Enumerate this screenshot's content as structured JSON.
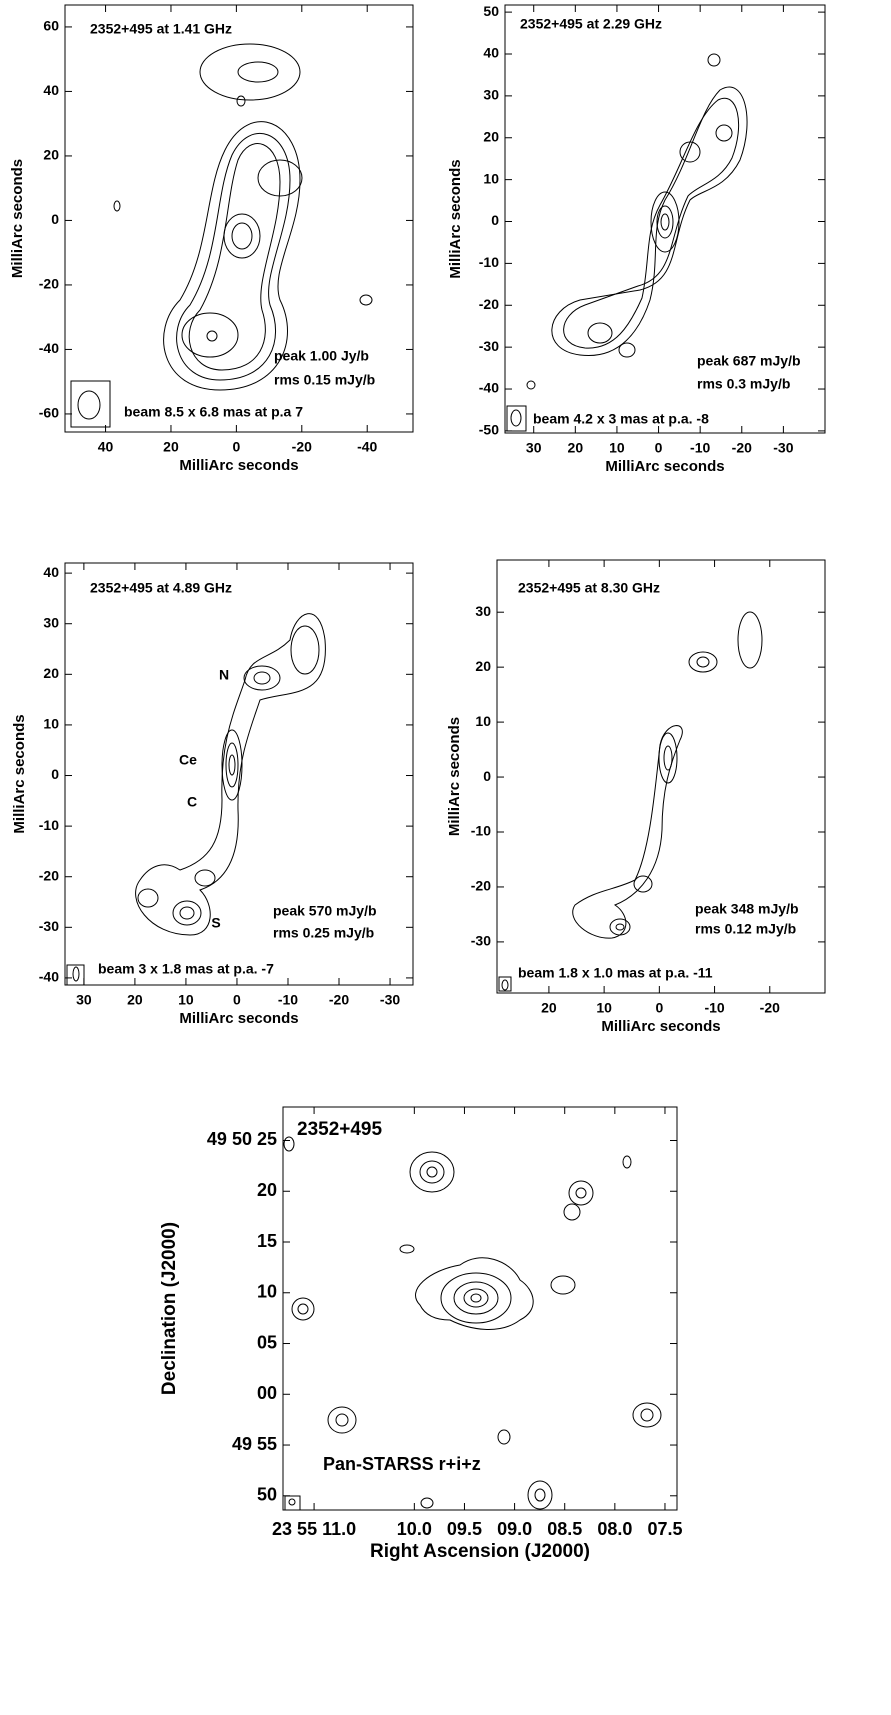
{
  "chart_data": [
    {
      "type": "contour",
      "title": "2352+495  at 1.41 GHz",
      "xlabel": "MilliArc seconds",
      "ylabel": "MilliArc seconds",
      "xlim": [
        52.4,
        -54
      ],
      "ylim": [
        -65.6,
        66.8
      ],
      "xticks": [
        40,
        20,
        0,
        -20,
        -40
      ],
      "yticks": [
        60,
        40,
        20,
        0,
        -20,
        -40,
        -60
      ],
      "annotations": [
        "peak 1.00 Jy/b",
        "rms 0.15 mJy/b",
        "beam 8.5 x 6.8 mas at p.a 7"
      ]
    },
    {
      "type": "contour",
      "title": "2352+495  at 2.29 GHz",
      "xlabel": "MilliArc seconds",
      "ylabel": "MilliArc seconds",
      "xlim": [
        36.9,
        -40
      ],
      "ylim": [
        -50.5,
        51.7
      ],
      "xticks": [
        30,
        20,
        10,
        0,
        -10,
        -20,
        -30
      ],
      "yticks": [
        50,
        40,
        30,
        20,
        10,
        0,
        -10,
        -20,
        -30,
        -40,
        -50
      ],
      "annotations": [
        "peak 687 mJy/b",
        "rms 0.3 mJy/b",
        "beam 4.2 x 3 mas at p.a. -8"
      ]
    },
    {
      "type": "contour",
      "title": "2352+495  at 4.89 GHz",
      "xlabel": "MilliArc seconds",
      "ylabel": "MilliArc seconds",
      "xlim": [
        33.7,
        -34.5
      ],
      "ylim": [
        -41.4,
        42
      ],
      "xticks": [
        30,
        20,
        10,
        0,
        -10,
        -20,
        -30
      ],
      "yticks": [
        40,
        30,
        20,
        10,
        0,
        -10,
        -20,
        -30,
        -40
      ],
      "annotations": [
        "peak 570 mJy/b",
        "rms 0.25 mJy/b",
        "beam 3 x 1.8 mas at p.a. -7"
      ],
      "labels": [
        "N",
        "Ce",
        "C",
        "S"
      ]
    },
    {
      "type": "contour",
      "title": "2352+495  at 8.30 GHz",
      "xlabel": "MilliArc seconds",
      "ylabel": "MilliArc seconds",
      "xlim": [
        29.4,
        -30
      ],
      "ylim": [
        -39.3,
        39.5
      ],
      "xticks": [
        20,
        10,
        0,
        -10,
        -20
      ],
      "yticks": [
        30,
        20,
        10,
        0,
        -10,
        -20,
        -30
      ],
      "annotations": [
        "peak 348 mJy/b",
        "rms 0.12 mJy/b",
        "beam 1.8 x 1.0 mas at p.a. -11"
      ]
    },
    {
      "type": "contour",
      "title": "2352+495",
      "xlabel": "Right Ascension (J2000)",
      "ylabel": "Declination (J2000)",
      "xlim": [
        11.31,
        7.38
      ],
      "ylim": [
        -11.4,
        28.3
      ],
      "xticks": [
        {
          "value": 11.0,
          "label": "23 55 11.0"
        },
        {
          "value": 10.0,
          "label": "10.0"
        },
        {
          "value": 9.5,
          "label": "09.5"
        },
        {
          "value": 9.0,
          "label": "09.0"
        },
        {
          "value": 8.5,
          "label": "08.5"
        },
        {
          "value": 8.0,
          "label": "08.0"
        },
        {
          "value": 7.5,
          "label": "07.5"
        }
      ],
      "yticks": [
        {
          "value": 25,
          "label": "49 50 25"
        },
        20,
        15,
        10,
        {
          "value": 5,
          "label": "05"
        },
        {
          "value": 0,
          "label": "00"
        },
        {
          "value": -5,
          "label": "49 55"
        },
        {
          "value": -10,
          "label": "50"
        }
      ],
      "annotations": [
        "Pan-STARSS r+i+z"
      ]
    }
  ]
}
